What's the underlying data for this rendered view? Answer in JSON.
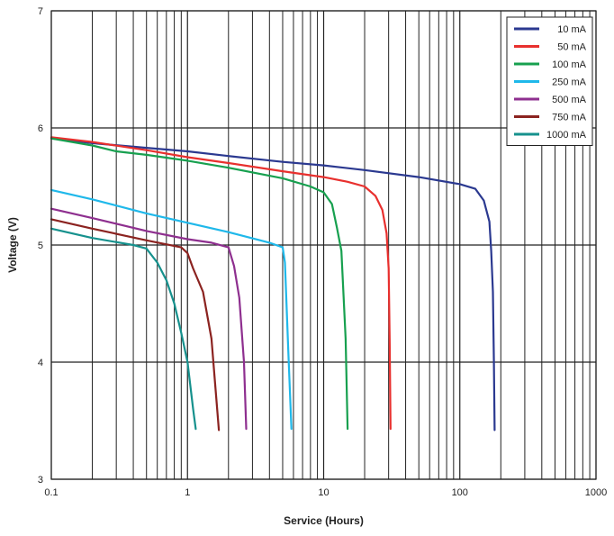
{
  "chart_data": {
    "type": "line",
    "title": "",
    "xlabel": "Service (Hours)",
    "ylabel": "Voltage (V)",
    "xscale": "log",
    "xlim": [
      0.1,
      1000
    ],
    "ylim": [
      3,
      7
    ],
    "xticks": [
      0.1,
      1,
      10,
      100,
      1000
    ],
    "xtick_labels": [
      "0.1",
      "1",
      "10",
      "100",
      "1000"
    ],
    "yticks": [
      3,
      4,
      5,
      6,
      7
    ],
    "ytick_labels": [
      "3",
      "4",
      "5",
      "6",
      "7"
    ],
    "grid": true,
    "legend_position": "top-right",
    "series": [
      {
        "name": "10 mA",
        "color": "#2b3990",
        "x": [
          0.1,
          0.2,
          0.5,
          1,
          2,
          5,
          10,
          20,
          50,
          100,
          130,
          150,
          165,
          170,
          175,
          178,
          180
        ],
        "y": [
          5.91,
          5.87,
          5.83,
          5.8,
          5.76,
          5.71,
          5.68,
          5.64,
          5.58,
          5.52,
          5.48,
          5.38,
          5.2,
          4.95,
          4.6,
          4.0,
          3.42
        ]
      },
      {
        "name": "50 mA",
        "color": "#e8302e",
        "x": [
          0.1,
          0.2,
          0.5,
          1,
          2,
          5,
          10,
          15,
          20,
          24,
          27,
          29,
          30,
          30.5,
          31
        ],
        "y": [
          5.92,
          5.88,
          5.81,
          5.75,
          5.7,
          5.63,
          5.58,
          5.54,
          5.5,
          5.42,
          5.3,
          5.1,
          4.8,
          4.2,
          3.43
        ]
      },
      {
        "name": "100 mA",
        "color": "#17a04f",
        "x": [
          0.1,
          0.2,
          0.3,
          0.5,
          1,
          2,
          5,
          8,
          10,
          11.5,
          12.5,
          13.5,
          14.5,
          15
        ],
        "y": [
          5.91,
          5.85,
          5.8,
          5.77,
          5.72,
          5.66,
          5.57,
          5.5,
          5.45,
          5.35,
          5.15,
          4.95,
          4.2,
          3.43
        ]
      },
      {
        "name": "250 mA",
        "color": "#1fb8ea",
        "x": [
          0.1,
          0.2,
          0.5,
          1,
          2,
          4,
          5,
          5.2,
          5.5,
          5.8
        ],
        "y": [
          5.47,
          5.39,
          5.27,
          5.19,
          5.11,
          5.02,
          4.98,
          4.85,
          4.1,
          3.43
        ]
      },
      {
        "name": "500 mA",
        "color": "#8e2f8f",
        "x": [
          0.1,
          0.2,
          0.5,
          1,
          1.5,
          2,
          2.2,
          2.4,
          2.6,
          2.7
        ],
        "y": [
          5.31,
          5.23,
          5.12,
          5.05,
          5.02,
          4.98,
          4.82,
          4.55,
          4.0,
          3.43
        ]
      },
      {
        "name": "750 mA",
        "color": "#8b2320",
        "x": [
          0.1,
          0.2,
          0.5,
          0.9,
          1,
          1.1,
          1.3,
          1.5,
          1.6,
          1.7
        ],
        "y": [
          5.22,
          5.14,
          5.04,
          4.98,
          4.93,
          4.8,
          4.6,
          4.2,
          3.8,
          3.42
        ]
      },
      {
        "name": "1000 mA",
        "color": "#16918d",
        "x": [
          0.1,
          0.2,
          0.4,
          0.5,
          0.6,
          0.7,
          0.8,
          0.9,
          1.0,
          1.1,
          1.15
        ],
        "y": [
          5.14,
          5.06,
          5.0,
          4.97,
          4.85,
          4.7,
          4.5,
          4.25,
          4.0,
          3.6,
          3.43
        ]
      }
    ]
  }
}
